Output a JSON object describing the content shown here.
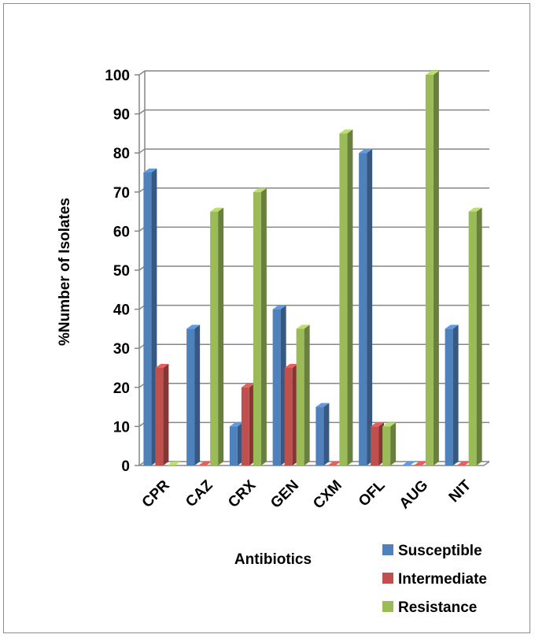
{
  "chart_data": {
    "type": "bar",
    "title": "",
    "xlabel": "Antibiotics",
    "ylabel": "%Number of Isolates",
    "ylim": [
      0,
      100
    ],
    "yticks": [
      0,
      10,
      20,
      30,
      40,
      50,
      60,
      70,
      80,
      90,
      100
    ],
    "grid": true,
    "legend_position": "bottom-right",
    "categories": [
      "CPR",
      "CAZ",
      "CRX",
      "GEN",
      "CXM",
      "OFL",
      "AUG",
      "NIT"
    ],
    "series": [
      {
        "name": "Susceptible",
        "color": "#4f81bd",
        "values": [
          75,
          35,
          10,
          40,
          15,
          80,
          0,
          35
        ]
      },
      {
        "name": "Intermediate",
        "color": "#c0504d",
        "values": [
          25,
          0,
          20,
          25,
          0,
          10,
          0,
          0
        ]
      },
      {
        "name": "Resistance",
        "color": "#9bbb59",
        "values": [
          0,
          65,
          70,
          35,
          85,
          10,
          100,
          65
        ]
      }
    ]
  }
}
